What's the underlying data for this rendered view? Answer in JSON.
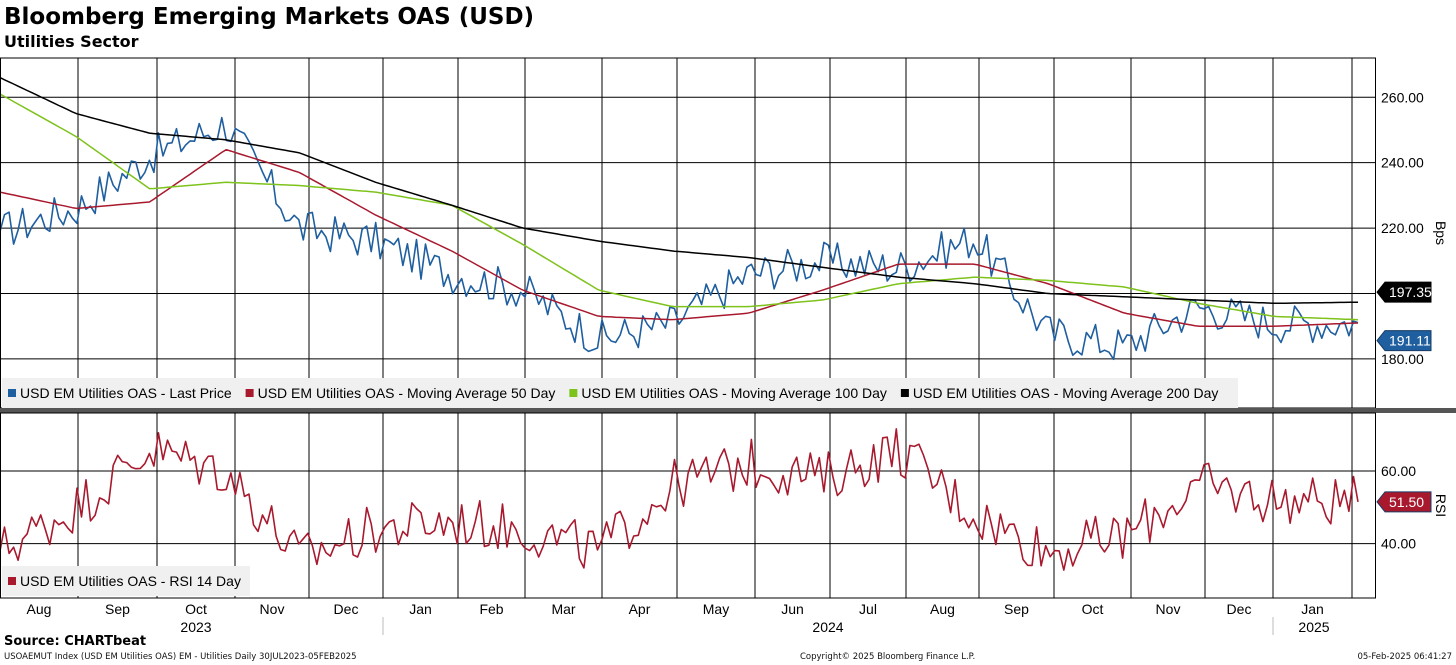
{
  "header": {
    "title": "Bloomberg Emerging Markets OAS (USD)",
    "subtitle": "Utilities Sector"
  },
  "footer": {
    "source": "Source: CHARTbeat",
    "index_info": "USOAEMUT Index (USD EM Utilities OAS) EM - Utilities  Daily 30JUL2023-05FEB2025",
    "copyright": "Copyright© 2025 Bloomberg Finance L.P.",
    "timestamp": "05-Feb-2025 06:41:27"
  },
  "x_axis": {
    "months": [
      "Aug",
      "Sep",
      "Oct",
      "Nov",
      "Dec",
      "Jan",
      "Feb",
      "Mar",
      "Apr",
      "May",
      "Jun",
      "Jul",
      "Aug",
      "Sep",
      "Oct",
      "Nov",
      "Dec",
      "Jan"
    ],
    "years": [
      "2023",
      "2024",
      "2025"
    ]
  },
  "chart_data": [
    {
      "type": "line",
      "panel": "upper",
      "ylabel": "Bps",
      "ylim": [
        165,
        272
      ],
      "yticks": [
        180,
        200,
        220,
        240,
        260
      ],
      "ytick_labels": [
        "180.00",
        "200.00",
        "220.00",
        "240.00",
        "260.00"
      ],
      "grid": true,
      "legend_placement": "bottom-left",
      "x": [
        "2023-08",
        "2023-09",
        "2023-10",
        "2023-11",
        "2023-12",
        "2024-01",
        "2024-02",
        "2024-03",
        "2024-04",
        "2024-05",
        "2024-06",
        "2024-07",
        "2024-08",
        "2024-09",
        "2024-10",
        "2024-11",
        "2024-12",
        "2025-01",
        "2025-02"
      ],
      "series": [
        {
          "name": "USD EM Utilities OAS - Last Price",
          "color": "#1f5fa0",
          "values": [
            219,
            226,
            242,
            252,
            220,
            216,
            206,
            201,
            186,
            191,
            206,
            210,
            208,
            217,
            188,
            184,
            196,
            191,
            191.11
          ]
        },
        {
          "name": "USD EM Utilities OAS - Moving Average 50 Day",
          "color": "#a8192e",
          "values": [
            231,
            226,
            228,
            244,
            237,
            224,
            213,
            201,
            193,
            192,
            194,
            201,
            209,
            209,
            203,
            194,
            190,
            190,
            191
          ]
        },
        {
          "name": "USD EM Utilities OAS - Moving Average 100 Day",
          "color": "#7ec21c",
          "values": [
            261,
            248,
            232,
            234,
            233,
            231,
            227,
            215,
            201,
            196,
            196,
            198,
            203,
            205,
            204,
            202,
            197,
            193,
            192
          ]
        },
        {
          "name": "USD EM Utilities OAS - Moving Average 200 Day",
          "color": "#000000",
          "values": [
            266,
            255,
            249,
            247,
            243,
            234,
            227,
            220,
            216,
            213,
            211,
            208,
            205,
            203,
            200,
            199,
            198,
            197,
            197.35
          ]
        }
      ],
      "last_value_tags": [
        {
          "label": "197.35",
          "value": 197.35,
          "color": "#000000"
        },
        {
          "label": "191.11",
          "value": 191.11,
          "color": "#1f5fa0"
        }
      ]
    },
    {
      "type": "line",
      "panel": "lower",
      "ylabel": "RSI",
      "ylim": [
        25,
        76
      ],
      "yticks": [
        40,
        60
      ],
      "ytick_labels": [
        "40.00",
        "60.00"
      ],
      "grid": true,
      "legend_placement": "bottom-left",
      "x": [
        "2023-08",
        "2023-09",
        "2023-10",
        "2023-11",
        "2023-12",
        "2024-01",
        "2024-02",
        "2024-03",
        "2024-04",
        "2024-05",
        "2024-06",
        "2024-07",
        "2024-08",
        "2024-09",
        "2024-10",
        "2024-11",
        "2024-12",
        "2025-01",
        "2025-02"
      ],
      "series": [
        {
          "name": "USD EM Utilities OAS - RSI 14 Day",
          "color": "#a8192e",
          "values": [
            38,
            50,
            66,
            60,
            36,
            44,
            46,
            44,
            38,
            56,
            62,
            58,
            66,
            48,
            38,
            42,
            56,
            52,
            51.5
          ]
        }
      ],
      "last_value_tags": [
        {
          "label": "51.50",
          "value": 51.5,
          "color": "#a8192e"
        }
      ]
    }
  ]
}
